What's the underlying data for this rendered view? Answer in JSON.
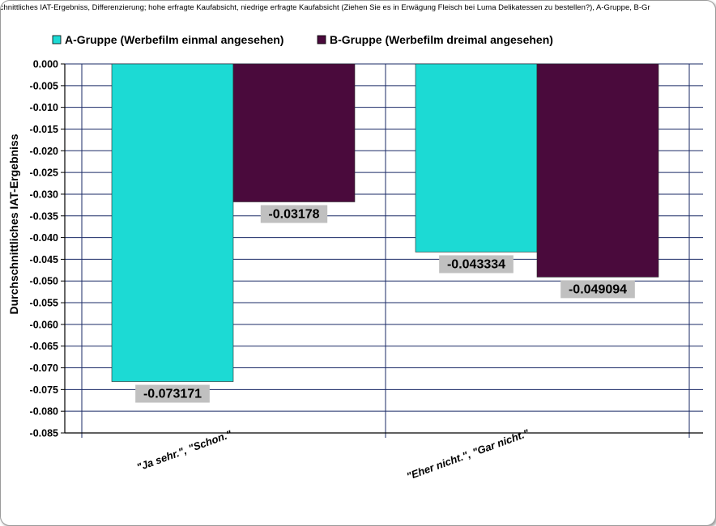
{
  "chart_data": {
    "type": "bar",
    "title": "schnittliches IAT-Ergebniss, Differenzierung; hohe erfragte Kaufabsicht, niedrige erfragte Kaufabsicht (Ziehen Sie es in Erwägung Fleisch bei Luma Delikatessen zu bestellen?), A-Gruppe, B-Gr",
    "categories": [
      "\"Ja sehr.\", \"Schon.\"",
      "\"Eher nicht.\", \"Gar nicht.\""
    ],
    "series": [
      {
        "name": "A-Gruppe (Werbefilm einmal angesehen)",
        "color": "#1cdad4",
        "values": [
          -0.073171,
          -0.043334
        ],
        "labels": [
          "-0.073171",
          "-0.043334"
        ]
      },
      {
        "name": "B-Gruppe (Werbefilm dreimal angesehen)",
        "color": "#4a0a3c",
        "values": [
          -0.03178,
          -0.049094
        ],
        "labels": [
          "-0.03178",
          "-0.049094"
        ]
      }
    ],
    "ylabel": "Durchschnittliches IAT-Ergebniss",
    "xlabel": "",
    "ylim": [
      -0.085,
      0.0
    ],
    "yticks": [
      "0.000",
      "-0.005",
      "-0.010",
      "-0.015",
      "-0.020",
      "-0.025",
      "-0.030",
      "-0.035",
      "-0.040",
      "-0.045",
      "-0.050",
      "-0.055",
      "-0.060",
      "-0.065",
      "-0.070",
      "-0.075",
      "-0.080",
      "-0.085"
    ],
    "grid": true,
    "legend": "top-left"
  }
}
